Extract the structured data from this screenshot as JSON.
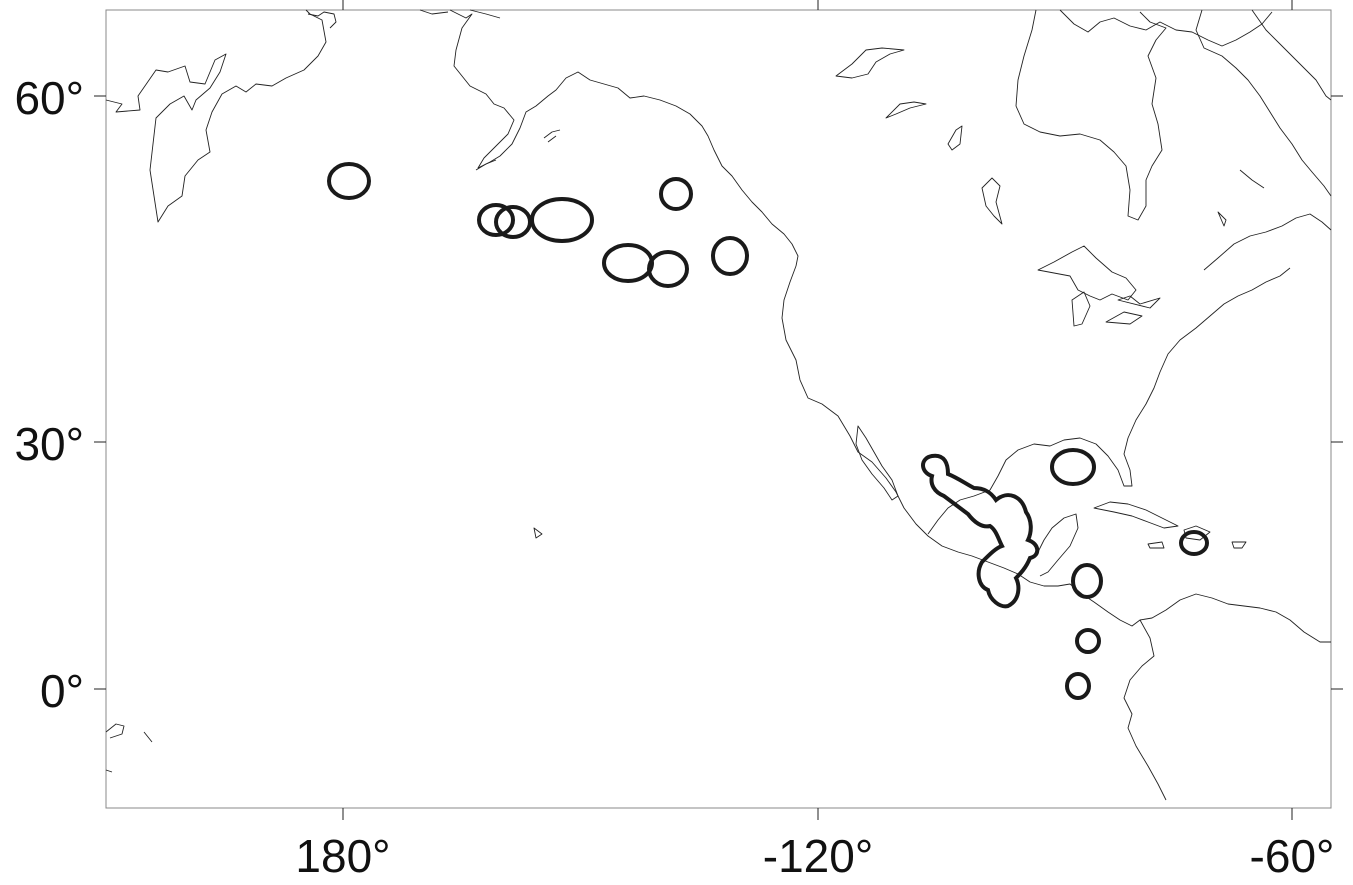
{
  "map": {
    "colors": {
      "coastline": "#222222",
      "contour": "#1a1a1a",
      "background": "#ffffff"
    },
    "y_axis_labels": [
      "60°",
      "30°",
      "0°"
    ],
    "x_axis_labels": [
      "180°",
      "-120°",
      "-60°"
    ]
  }
}
